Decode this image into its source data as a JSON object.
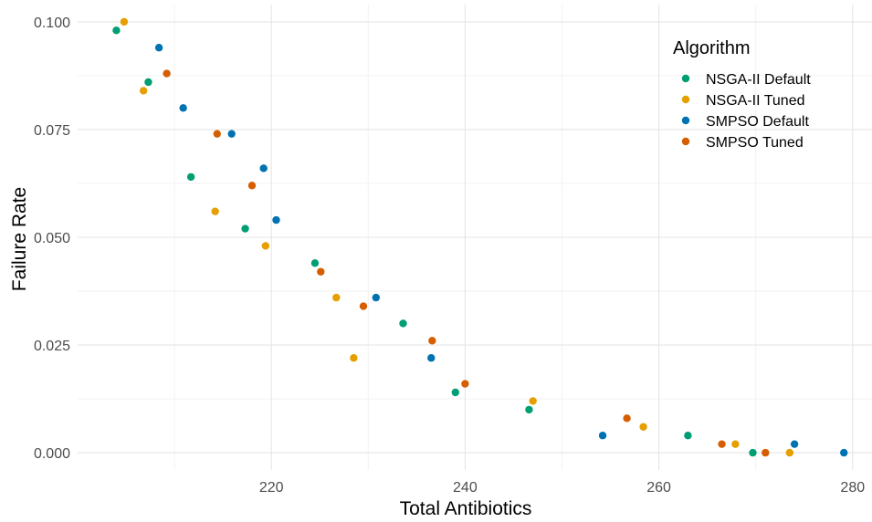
{
  "chart_data": {
    "type": "scatter",
    "xlabel": "Total Antibiotics",
    "ylabel": "Failure Rate",
    "xlim": [
      200,
      282
    ],
    "ylim": [
      -0.004,
      0.104
    ],
    "x_ticks": [
      220,
      240,
      260,
      280
    ],
    "x_tick_labels": [
      "220",
      "240",
      "260",
      "280"
    ],
    "y_ticks": [
      0.0,
      0.025,
      0.05,
      0.075,
      0.1
    ],
    "y_tick_labels": [
      "0.000",
      "0.025",
      "0.050",
      "0.075",
      "0.100"
    ],
    "grid": true,
    "legend": {
      "title": "Algorithm",
      "position": "top-right"
    },
    "series": [
      {
        "name": "NSGA-II Default",
        "color": "#009E73",
        "points": [
          [
            204.0,
            0.098
          ],
          [
            207.3,
            0.086
          ],
          [
            211.7,
            0.064
          ],
          [
            217.3,
            0.052
          ],
          [
            224.5,
            0.044
          ],
          [
            233.6,
            0.03
          ],
          [
            239.0,
            0.014
          ],
          [
            246.6,
            0.01
          ],
          [
            263.0,
            0.004
          ],
          [
            269.7,
            0.0
          ]
        ]
      },
      {
        "name": "NSGA-II Tuned",
        "color": "#E69F00",
        "points": [
          [
            204.8,
            0.1
          ],
          [
            206.8,
            0.084
          ],
          [
            214.2,
            0.056
          ],
          [
            219.4,
            0.048
          ],
          [
            226.7,
            0.036
          ],
          [
            228.5,
            0.022
          ],
          [
            247.0,
            0.012
          ],
          [
            258.4,
            0.006
          ],
          [
            267.9,
            0.002
          ],
          [
            273.5,
            0.0
          ]
        ]
      },
      {
        "name": "SMPSO Default",
        "color": "#0072B2",
        "points": [
          [
            208.4,
            0.094
          ],
          [
            210.9,
            0.08
          ],
          [
            215.9,
            0.074
          ],
          [
            219.2,
            0.066
          ],
          [
            220.5,
            0.054
          ],
          [
            230.8,
            0.036
          ],
          [
            236.5,
            0.022
          ],
          [
            254.2,
            0.004
          ],
          [
            274.0,
            0.002
          ],
          [
            279.1,
            0.0
          ]
        ]
      },
      {
        "name": "SMPSO Tuned",
        "color": "#D55E00",
        "points": [
          [
            209.2,
            0.088
          ],
          [
            214.4,
            0.074
          ],
          [
            218.0,
            0.062
          ],
          [
            225.1,
            0.042
          ],
          [
            229.5,
            0.034
          ],
          [
            236.6,
            0.026
          ],
          [
            240.0,
            0.016
          ],
          [
            256.7,
            0.008
          ],
          [
            266.5,
            0.002
          ],
          [
            271.0,
            0.0
          ]
        ]
      }
    ]
  }
}
